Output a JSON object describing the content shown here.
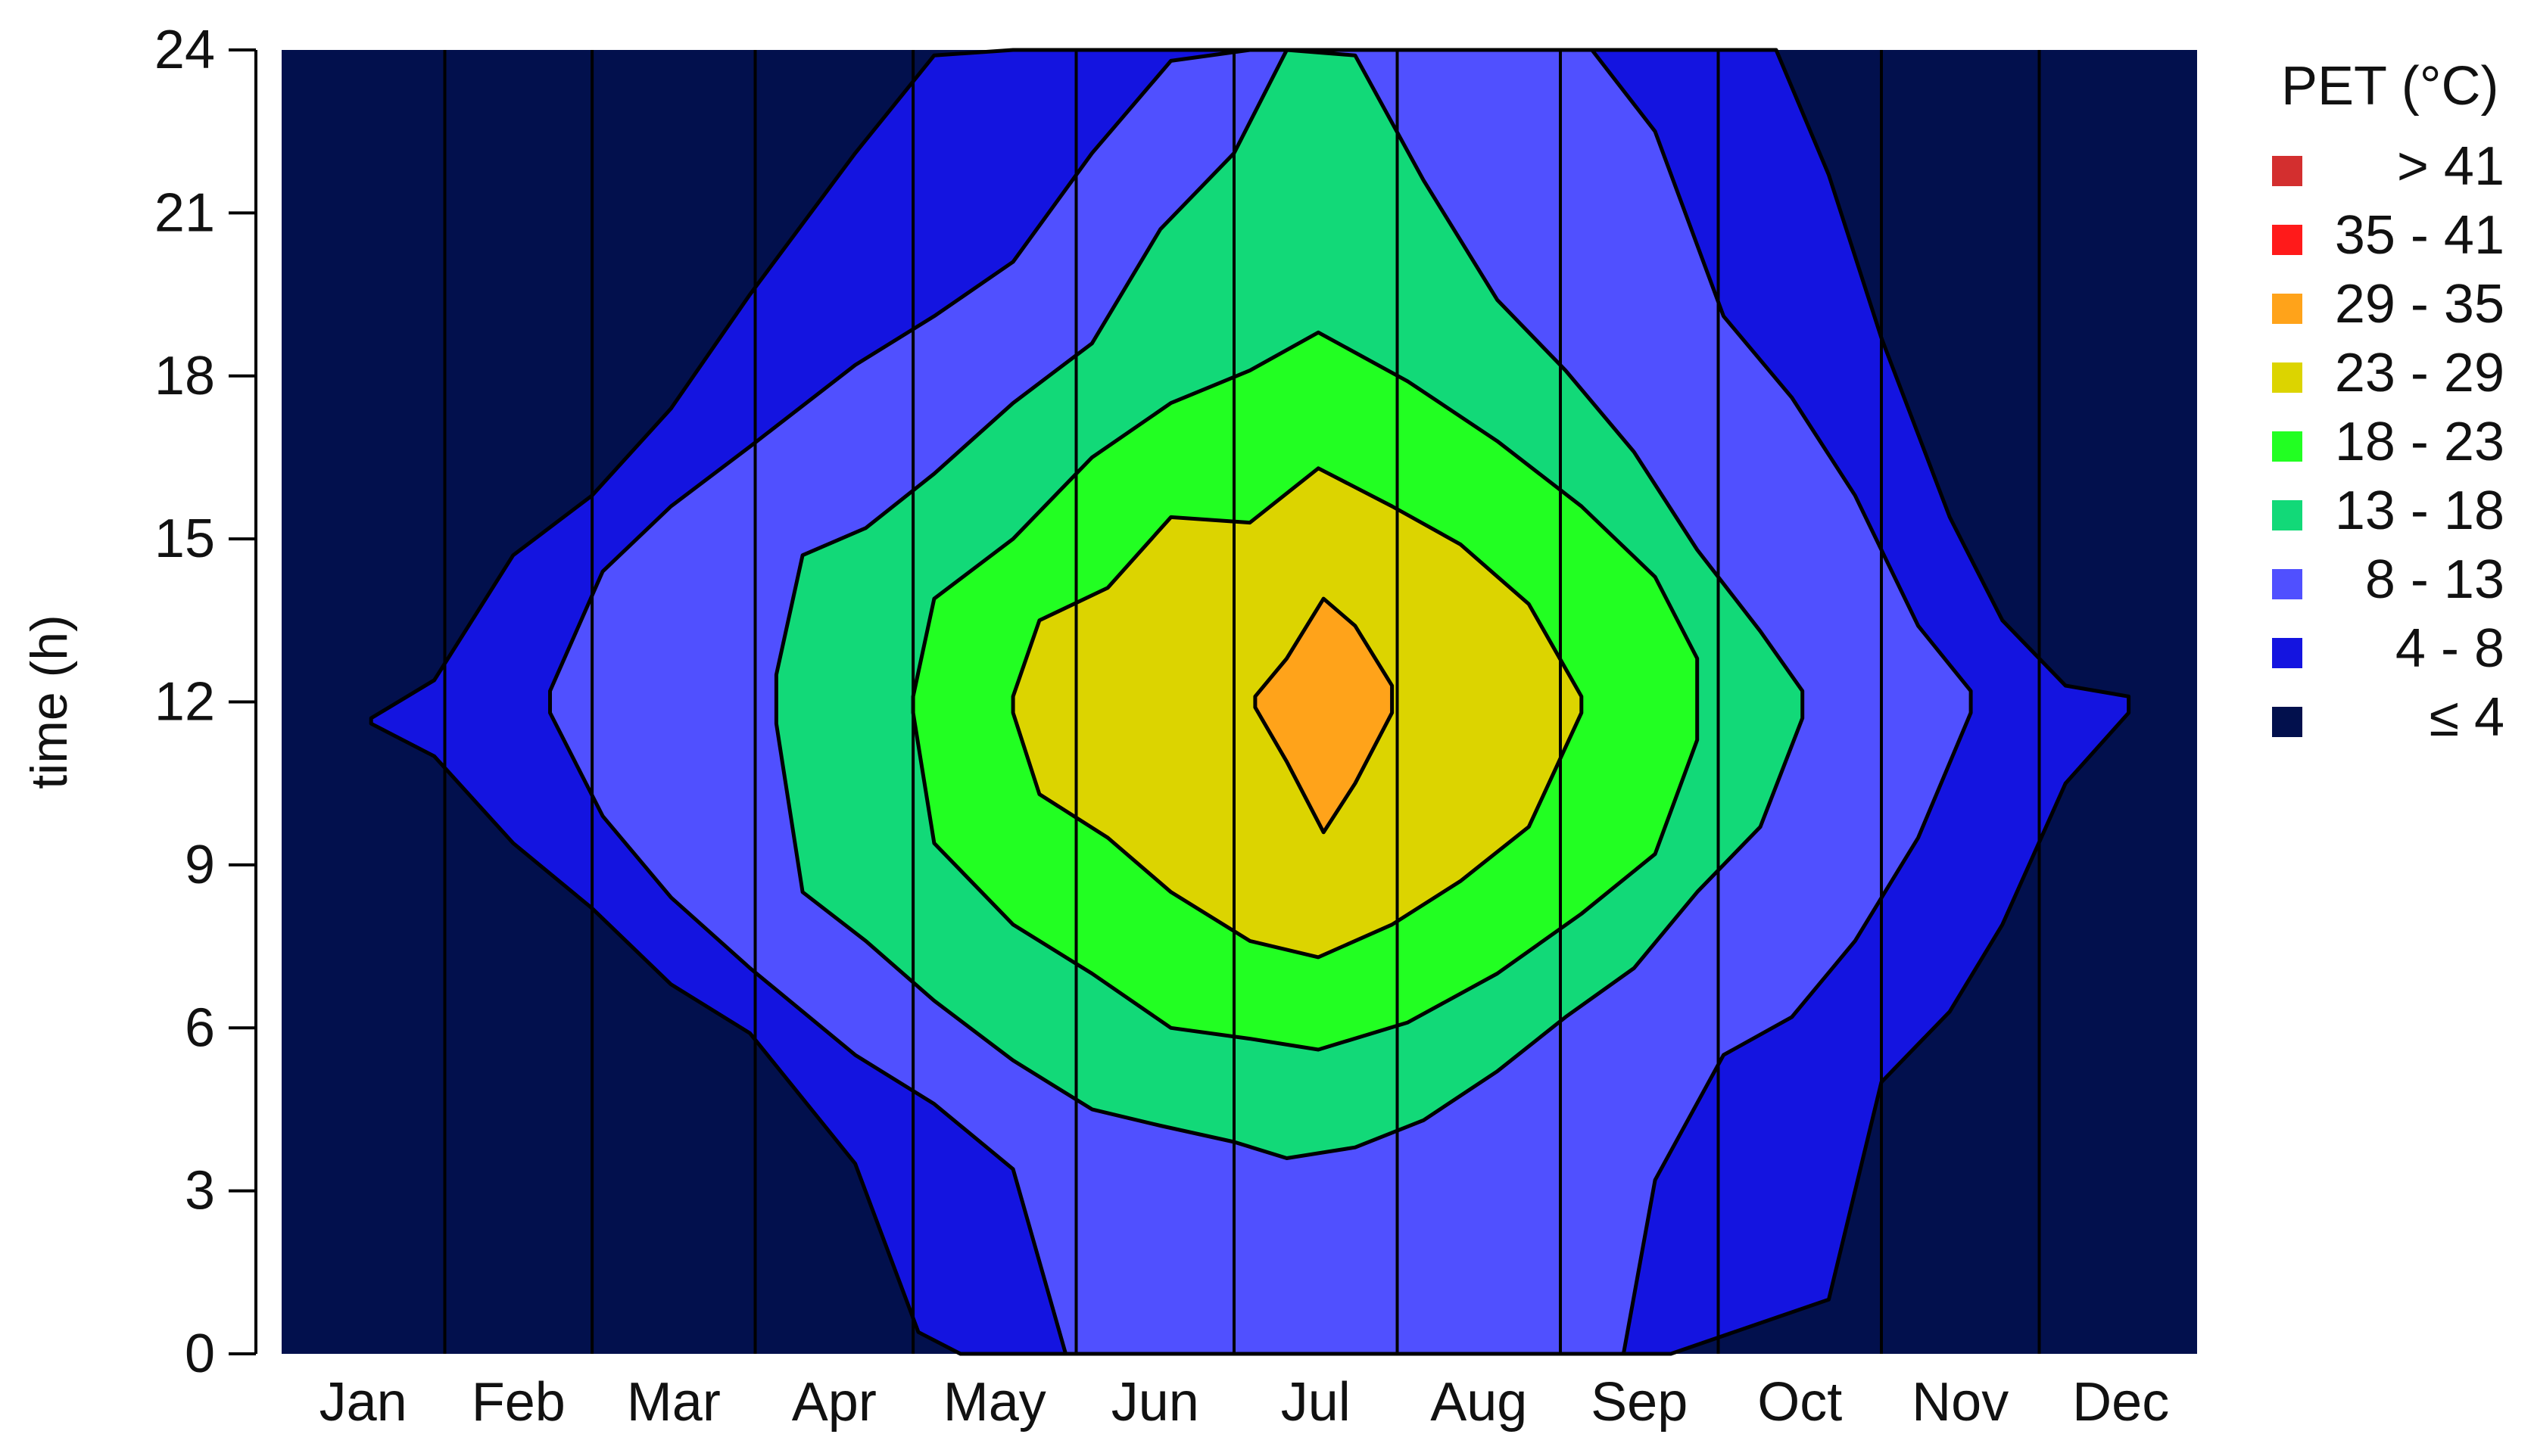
{
  "chart_data": {
    "type": "heatmap",
    "title": "",
    "xlabel": "",
    "ylabel": "time (h)",
    "x_categories": [
      "Jan",
      "Feb",
      "Mar",
      "Apr",
      "May",
      "Jun",
      "Jul",
      "Aug",
      "Sep",
      "Oct",
      "Nov",
      "Dec"
    ],
    "month_days": [
      31,
      28,
      31,
      30,
      31,
      30,
      31,
      31,
      30,
      31,
      30,
      31
    ],
    "xlim_day_of_year": [
      1,
      365
    ],
    "ylim": [
      0,
      24
    ],
    "yticks": [
      0,
      3,
      6,
      9,
      12,
      15,
      18,
      21,
      24
    ],
    "grid": "vertical month boundaries",
    "legend": {
      "title": "PET (°C)",
      "placement": "right",
      "entries": [
        {
          "label": "> 41",
          "color": "#d32f2f"
        },
        {
          "label": "35 - 41",
          "color": "#ff1a1a"
        },
        {
          "label": "29 - 35",
          "color": "#ffa31a"
        },
        {
          "label": "23 - 29",
          "color": "#dcd400"
        },
        {
          "label": "18 - 23",
          "color": "#22ff22"
        },
        {
          "label": "13 - 18",
          "color": "#12d978"
        },
        {
          "label": "8 - 13",
          "color": "#5050ff"
        },
        {
          "label": "4 -   8",
          "color": "#1414e0"
        },
        {
          "label": "≤ 4",
          "color": "#02104d"
        }
      ]
    },
    "contours": [
      {
        "name": "≤ 4",
        "threshold_c": 4,
        "color": "#02104d",
        "extent_day_of_year": [
          1,
          365
        ]
      },
      {
        "name": "4 -   8",
        "threshold_c": 4,
        "color": "#1414e0",
        "upper": [
          [
            18,
            11.7
          ],
          [
            30,
            12.4
          ],
          [
            45,
            14.7
          ],
          [
            60,
            15.8
          ],
          [
            75,
            17.4
          ],
          [
            90,
            19.5
          ],
          [
            110,
            22.1
          ],
          [
            125,
            23.9
          ],
          [
            140,
            24
          ],
          [
            200,
            24
          ],
          [
            265,
            24
          ],
          [
            285,
            24
          ],
          [
            295,
            21.7
          ],
          [
            305,
            18.7
          ],
          [
            318,
            15.4
          ],
          [
            328,
            13.5
          ],
          [
            340,
            12.3
          ],
          [
            352,
            12.1
          ]
        ],
        "lower": [
          [
            18,
            11.6
          ],
          [
            30,
            11.0
          ],
          [
            45,
            9.4
          ],
          [
            60,
            8.2
          ],
          [
            75,
            6.8
          ],
          [
            90,
            5.9
          ],
          [
            110,
            3.5
          ],
          [
            122,
            0.4
          ],
          [
            130,
            0
          ],
          [
            200,
            0
          ],
          [
            265,
            0
          ],
          [
            295,
            1.0
          ],
          [
            305,
            5.0
          ],
          [
            318,
            6.3
          ],
          [
            328,
            7.9
          ],
          [
            340,
            10.5
          ],
          [
            352,
            11.8
          ]
        ]
      },
      {
        "name": "8 - 13",
        "threshold_c": 8,
        "color": "#5050ff",
        "upper": [
          [
            52,
            12.2
          ],
          [
            62,
            14.4
          ],
          [
            75,
            15.6
          ],
          [
            90,
            16.7
          ],
          [
            110,
            18.2
          ],
          [
            125,
            19.1
          ],
          [
            140,
            20.1
          ],
          [
            155,
            22.1
          ],
          [
            170,
            23.8
          ],
          [
            185,
            24
          ],
          [
            230,
            24
          ],
          [
            250,
            24
          ],
          [
            262,
            22.5
          ],
          [
            275,
            19.1
          ],
          [
            288,
            17.6
          ],
          [
            300,
            15.8
          ],
          [
            312,
            13.4
          ],
          [
            322,
            12.2
          ]
        ],
        "lower": [
          [
            52,
            11.8
          ],
          [
            62,
            9.9
          ],
          [
            75,
            8.4
          ],
          [
            90,
            7.1
          ],
          [
            110,
            5.5
          ],
          [
            125,
            4.6
          ],
          [
            140,
            3.4
          ],
          [
            150,
            0
          ],
          [
            230,
            0
          ],
          [
            256,
            0
          ],
          [
            262,
            3.2
          ],
          [
            275,
            5.5
          ],
          [
            288,
            6.2
          ],
          [
            300,
            7.6
          ],
          [
            312,
            9.5
          ],
          [
            322,
            11.8
          ]
        ]
      },
      {
        "name": "13 - 18",
        "threshold_c": 13,
        "color": "#12d978",
        "upper": [
          [
            95,
            12.5
          ],
          [
            100,
            14.7
          ],
          [
            112,
            15.2
          ],
          [
            125,
            16.2
          ],
          [
            140,
            17.5
          ],
          [
            155,
            18.6
          ],
          [
            168,
            20.7
          ],
          [
            182,
            22.1
          ],
          [
            192,
            24
          ],
          [
            205,
            23.9
          ],
          [
            218,
            21.6
          ],
          [
            232,
            19.4
          ],
          [
            245,
            18.1
          ],
          [
            258,
            16.6
          ],
          [
            270,
            14.8
          ],
          [
            282,
            13.3
          ],
          [
            290,
            12.2
          ]
        ],
        "lower": [
          [
            95,
            11.6
          ],
          [
            100,
            8.5
          ],
          [
            112,
            7.6
          ],
          [
            125,
            6.5
          ],
          [
            140,
            5.4
          ],
          [
            155,
            4.5
          ],
          [
            168,
            4.2
          ],
          [
            182,
            3.9
          ],
          [
            192,
            3.6
          ],
          [
            205,
            3.8
          ],
          [
            218,
            4.3
          ],
          [
            232,
            5.2
          ],
          [
            245,
            6.2
          ],
          [
            258,
            7.1
          ],
          [
            270,
            8.5
          ],
          [
            282,
            9.7
          ],
          [
            290,
            11.7
          ]
        ]
      },
      {
        "name": "18 - 23",
        "threshold_c": 18,
        "color": "#22ff22",
        "upper": [
          [
            121,
            12.1
          ],
          [
            125,
            13.9
          ],
          [
            140,
            15.0
          ],
          [
            155,
            16.5
          ],
          [
            170,
            17.5
          ],
          [
            185,
            18.1
          ],
          [
            198,
            18.8
          ],
          [
            215,
            17.9
          ],
          [
            232,
            16.8
          ],
          [
            248,
            15.6
          ],
          [
            262,
            14.3
          ],
          [
            270,
            12.8
          ]
        ],
        "lower": [
          [
            121,
            11.8
          ],
          [
            125,
            9.4
          ],
          [
            140,
            7.9
          ],
          [
            155,
            7.0
          ],
          [
            170,
            6.0
          ],
          [
            185,
            5.8
          ],
          [
            198,
            5.6
          ],
          [
            215,
            6.1
          ],
          [
            232,
            7.0
          ],
          [
            248,
            8.1
          ],
          [
            262,
            9.2
          ],
          [
            270,
            11.3
          ]
        ]
      },
      {
        "name": "23 - 29",
        "threshold_c": 23,
        "color": "#dcd400",
        "upper": [
          [
            140,
            12.1
          ],
          [
            145,
            13.5
          ],
          [
            158,
            14.1
          ],
          [
            170,
            15.4
          ],
          [
            185,
            15.3
          ],
          [
            198,
            16.3
          ],
          [
            212,
            15.6
          ],
          [
            225,
            14.9
          ],
          [
            238,
            13.8
          ],
          [
            248,
            12.1
          ]
        ],
        "lower": [
          [
            140,
            11.8
          ],
          [
            145,
            10.3
          ],
          [
            158,
            9.5
          ],
          [
            170,
            8.5
          ],
          [
            185,
            7.6
          ],
          [
            198,
            7.3
          ],
          [
            212,
            7.9
          ],
          [
            225,
            8.7
          ],
          [
            238,
            9.7
          ],
          [
            248,
            11.8
          ]
        ]
      },
      {
        "name": "29 - 35",
        "threshold_c": 29,
        "color": "#ffa31a",
        "upper": [
          [
            186,
            12.1
          ],
          [
            192,
            12.8
          ],
          [
            199,
            13.9
          ],
          [
            205,
            13.4
          ],
          [
            212,
            12.3
          ]
        ],
        "lower": [
          [
            186,
            11.9
          ],
          [
            192,
            10.9
          ],
          [
            199,
            9.6
          ],
          [
            205,
            10.5
          ],
          [
            212,
            11.8
          ]
        ]
      }
    ]
  }
}
